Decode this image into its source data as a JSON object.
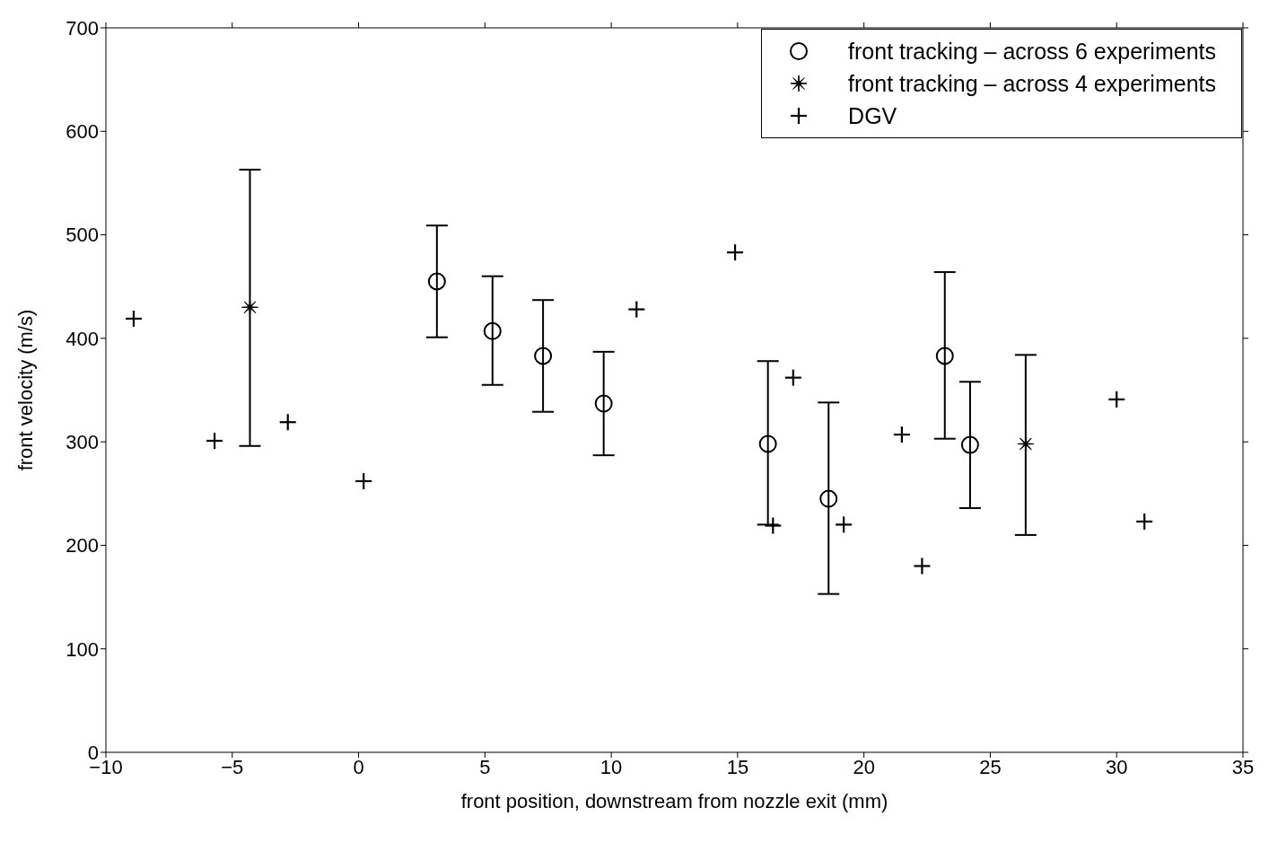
{
  "chart_data": {
    "type": "scatter",
    "xlabel": "front position, downstream from nozzle exit (mm)",
    "ylabel": "front velocity (m/s)",
    "xlim": [
      -10,
      35
    ],
    "xticks": [
      -10,
      -5,
      0,
      5,
      10,
      15,
      20,
      25,
      30,
      35
    ],
    "ylim": [
      0,
      700
    ],
    "yticks": [
      0,
      100,
      200,
      300,
      400,
      500,
      600,
      700
    ],
    "grid": false,
    "legend": "top right",
    "series": [
      {
        "name": "front tracking – across 6 experiments",
        "color": "#000000",
        "marker": "circle",
        "x": [
          3.1,
          5.3,
          7.3,
          9.7,
          16.2,
          18.6,
          23.2,
          24.2
        ],
        "values": [
          455,
          407,
          383,
          337,
          298,
          245,
          383,
          297
        ],
        "errors": [
          [
            401,
            509
          ],
          [
            355,
            460
          ],
          [
            329,
            437
          ],
          [
            287,
            387
          ],
          [
            220,
            378
          ],
          [
            153,
            338
          ],
          [
            303,
            464
          ],
          [
            236,
            358
          ]
        ]
      },
      {
        "name": "front tracking – across 4 experiments",
        "color": "#000000",
        "marker": "star",
        "x": [
          -4.3,
          26.4
        ],
        "values": [
          430,
          298
        ],
        "errors": [
          [
            296,
            563
          ],
          [
            210,
            384
          ]
        ]
      },
      {
        "name": "DGV",
        "color": "#000000",
        "marker": "cross",
        "x": [
          -8.9,
          -5.7,
          -2.8,
          0.2,
          11.0,
          14.9,
          16.4,
          17.2,
          19.2,
          21.5,
          22.3,
          30.0,
          31.1
        ],
        "values": [
          419,
          301,
          319,
          262,
          428,
          483,
          219,
          362,
          220,
          307,
          180,
          341,
          223
        ]
      }
    ]
  }
}
